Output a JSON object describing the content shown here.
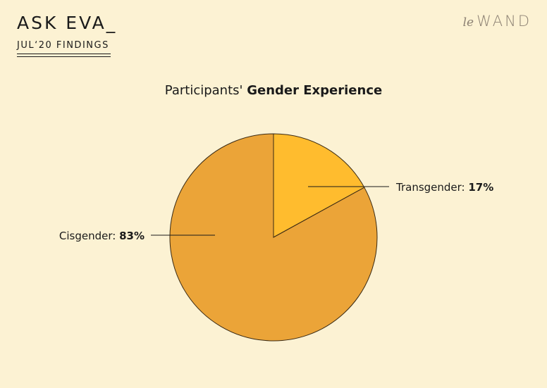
{
  "header": {
    "brand": "ASK EVA_",
    "subtitle": "JUL‘20 FINDINGS",
    "logo_small": "le",
    "logo_main": "WAND"
  },
  "chart_data": {
    "type": "pie",
    "title_regular": "Participants'",
    "title_bold": "Gender Experience",
    "slices": [
      {
        "label": "Transgender:",
        "value": 17,
        "value_label": "17%",
        "color": "#FFBC2E"
      },
      {
        "label": "Cisgender:",
        "value": 83,
        "value_label": "83%",
        "color": "#EBA438"
      }
    ],
    "start": "12 o'clock, clockwise",
    "stroke_color": "#3A2A14"
  }
}
